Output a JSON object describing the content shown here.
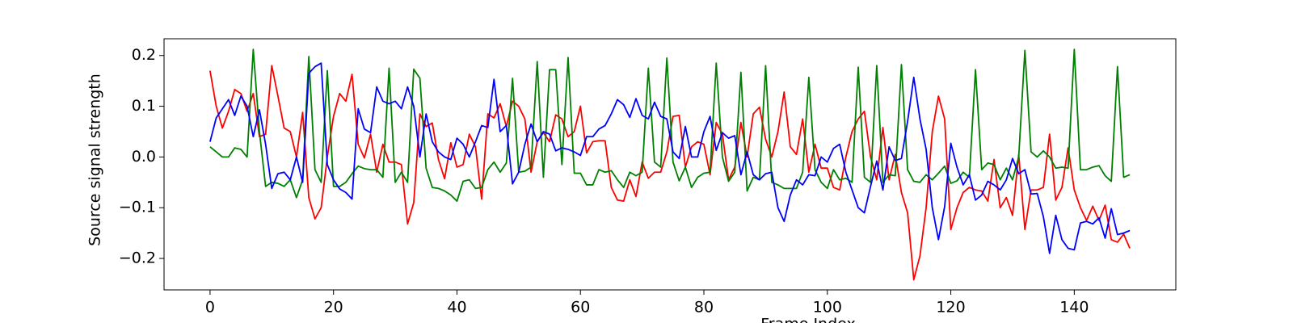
{
  "chart_data": {
    "type": "line",
    "xlabel": "Frame Index",
    "ylabel": "Source signal strength",
    "x": [
      0,
      1,
      2,
      3,
      4,
      5,
      6,
      7,
      8,
      9,
      10,
      11,
      12,
      13,
      14,
      15,
      16,
      17,
      18,
      19,
      20,
      21,
      22,
      23,
      24,
      25,
      26,
      27,
      28,
      29,
      30,
      31,
      32,
      33,
      34,
      35,
      36,
      37,
      38,
      39,
      40,
      41,
      42,
      43,
      44,
      45,
      46,
      47,
      48,
      49,
      50,
      51,
      52,
      53,
      54,
      55,
      56,
      57,
      58,
      59,
      60,
      61,
      62,
      63,
      64,
      65,
      66,
      67,
      68,
      69,
      70,
      71,
      72,
      73,
      74,
      75,
      76,
      77,
      78,
      79,
      80,
      81,
      82,
      83,
      84,
      85,
      86,
      87,
      88,
      89,
      90,
      91,
      92,
      93,
      94,
      95,
      96,
      97,
      98,
      99,
      100,
      101,
      102,
      103,
      104,
      105,
      106,
      107,
      108,
      109,
      110,
      111,
      112,
      113,
      114,
      115,
      116,
      117,
      118,
      119,
      120,
      121,
      122,
      123,
      124,
      125,
      126,
      127,
      128,
      129,
      130,
      131,
      132,
      133,
      134,
      135,
      136,
      137,
      138,
      139,
      140,
      141,
      142,
      143,
      144,
      145,
      146,
      147,
      148,
      149
    ],
    "series": [
      {
        "color": "#ff0000",
        "values": [
          0.17,
          0.1,
          0.057,
          0.09,
          0.133,
          0.125,
          0.09,
          0.125,
          0.04,
          0.045,
          0.18,
          0.12,
          0.057,
          0.05,
          0.0,
          0.088,
          -0.08,
          -0.122,
          -0.1,
          0.0,
          0.08,
          0.125,
          0.11,
          0.163,
          0.025,
          -0.002,
          0.045,
          -0.03,
          0.025,
          -0.01,
          -0.01,
          -0.015,
          -0.132,
          -0.09,
          0.085,
          0.06,
          0.067,
          -0.005,
          -0.043,
          0.028,
          -0.02,
          -0.015,
          0.045,
          0.02,
          -0.083,
          0.085,
          0.077,
          0.105,
          0.06,
          0.11,
          0.1,
          0.075,
          -0.03,
          0.03,
          0.048,
          0.03,
          0.083,
          0.075,
          0.04,
          0.05,
          0.1,
          0.008,
          0.03,
          0.032,
          0.032,
          -0.06,
          -0.085,
          -0.087,
          -0.045,
          -0.078,
          -0.01,
          -0.042,
          -0.03,
          -0.03,
          0.01,
          0.08,
          0.082,
          -0.02,
          0.02,
          0.03,
          0.025,
          -0.035,
          0.068,
          0.045,
          -0.045,
          -0.02,
          0.068,
          0.0,
          0.085,
          0.098,
          0.035,
          0.0,
          0.05,
          0.128,
          0.02,
          0.005,
          0.075,
          -0.03,
          0.025,
          -0.022,
          -0.022,
          -0.06,
          -0.065,
          0.0,
          0.05,
          0.075,
          0.09,
          0.0,
          -0.045,
          0.058,
          -0.045,
          0.005,
          -0.07,
          -0.11,
          -0.242,
          -0.195,
          -0.1,
          0.05,
          0.12,
          0.075,
          -0.143,
          -0.1,
          -0.07,
          -0.06,
          -0.065,
          -0.067,
          -0.087,
          -0.005,
          -0.1,
          -0.08,
          -0.115,
          0.005,
          -0.143,
          -0.065,
          -0.065,
          -0.06,
          0.045,
          -0.085,
          -0.06,
          0.018,
          -0.065,
          -0.1,
          -0.125,
          -0.097,
          -0.125,
          -0.095,
          -0.163,
          -0.168,
          -0.152,
          -0.18
        ]
      },
      {
        "color": "#008000",
        "values": [
          0.02,
          0.01,
          0.0,
          0.0,
          0.018,
          0.015,
          0.0,
          0.212,
          0.05,
          -0.058,
          -0.05,
          -0.052,
          -0.058,
          -0.045,
          -0.08,
          -0.045,
          0.198,
          -0.025,
          -0.05,
          0.17,
          -0.058,
          -0.058,
          -0.05,
          -0.033,
          -0.018,
          -0.023,
          -0.025,
          -0.025,
          -0.04,
          0.175,
          -0.05,
          -0.03,
          -0.05,
          0.173,
          0.155,
          -0.022,
          -0.06,
          -0.062,
          -0.067,
          -0.075,
          -0.087,
          -0.048,
          -0.045,
          -0.062,
          -0.06,
          -0.025,
          -0.01,
          -0.03,
          -0.012,
          0.155,
          -0.03,
          -0.028,
          -0.02,
          0.188,
          -0.04,
          0.172,
          0.172,
          -0.015,
          0.196,
          -0.032,
          -0.032,
          -0.055,
          -0.055,
          -0.025,
          -0.03,
          -0.027,
          -0.045,
          -0.06,
          -0.03,
          -0.037,
          -0.03,
          0.175,
          -0.01,
          -0.02,
          0.195,
          -0.01,
          -0.047,
          -0.02,
          -0.06,
          -0.04,
          -0.032,
          -0.03,
          0.185,
          0.0,
          -0.048,
          -0.03,
          0.167,
          -0.067,
          -0.04,
          -0.045,
          0.18,
          -0.05,
          -0.055,
          -0.062,
          -0.062,
          -0.062,
          -0.03,
          0.157,
          -0.025,
          -0.05,
          -0.062,
          -0.025,
          -0.045,
          -0.042,
          -0.05,
          0.177,
          -0.04,
          -0.05,
          0.18,
          -0.05,
          -0.035,
          -0.037,
          0.182,
          -0.025,
          -0.048,
          -0.05,
          -0.035,
          -0.045,
          -0.032,
          -0.018,
          -0.052,
          -0.047,
          -0.03,
          -0.04,
          0.172,
          -0.025,
          -0.012,
          -0.015,
          -0.045,
          -0.022,
          -0.045,
          0.0,
          0.21,
          0.01,
          0.0,
          0.012,
          0.0,
          -0.022,
          -0.02,
          -0.022,
          0.212,
          -0.025,
          -0.025,
          -0.02,
          -0.017,
          -0.037,
          -0.048,
          0.178,
          -0.04,
          -0.035
        ]
      },
      {
        "color": "#0000ff",
        "values": [
          0.03,
          0.077,
          0.095,
          0.113,
          0.082,
          0.12,
          0.1,
          0.04,
          0.093,
          0.025,
          -0.062,
          -0.033,
          -0.03,
          -0.045,
          0.0,
          -0.05,
          0.165,
          0.178,
          0.185,
          -0.015,
          -0.045,
          -0.063,
          -0.07,
          -0.083,
          0.095,
          0.055,
          0.048,
          0.138,
          0.11,
          0.105,
          0.11,
          0.095,
          0.138,
          0.1,
          0.0,
          0.085,
          0.03,
          0.01,
          0.0,
          -0.005,
          0.037,
          0.025,
          0.0,
          0.03,
          0.062,
          0.058,
          0.153,
          0.05,
          0.062,
          -0.053,
          -0.03,
          0.025,
          0.065,
          0.03,
          0.05,
          0.045,
          0.012,
          0.018,
          0.015,
          0.01,
          0.003,
          0.04,
          0.04,
          0.055,
          0.062,
          0.085,
          0.113,
          0.103,
          0.078,
          0.115,
          0.082,
          0.075,
          0.108,
          0.08,
          0.075,
          0.01,
          -0.003,
          0.06,
          0.0,
          0.0,
          0.05,
          0.08,
          0.013,
          0.048,
          0.037,
          0.042,
          -0.035,
          0.01,
          -0.035,
          -0.045,
          -0.033,
          -0.03,
          -0.1,
          -0.127,
          -0.075,
          -0.045,
          -0.055,
          -0.035,
          -0.037,
          0.0,
          -0.01,
          0.017,
          0.025,
          -0.03,
          -0.065,
          -0.1,
          -0.11,
          -0.058,
          -0.008,
          -0.065,
          0.02,
          -0.007,
          -0.003,
          0.07,
          0.157,
          0.075,
          0.015,
          -0.1,
          -0.163,
          -0.098,
          0.027,
          -0.02,
          -0.055,
          -0.035,
          -0.085,
          -0.075,
          -0.048,
          -0.055,
          -0.065,
          -0.045,
          -0.003,
          -0.033,
          -0.025,
          -0.073,
          -0.072,
          -0.118,
          -0.19,
          -0.115,
          -0.163,
          -0.18,
          -0.183,
          -0.13,
          -0.127,
          -0.132,
          -0.12,
          -0.16,
          -0.102,
          -0.153,
          -0.15,
          -0.145
        ]
      }
    ],
    "xlim": [
      -7.45,
      156.45
    ],
    "ylim": [
      -0.262,
      0.233
    ],
    "xticks": [
      0,
      20,
      40,
      60,
      80,
      100,
      120,
      140
    ],
    "yticks": [
      {
        "value": -0.2,
        "label": "−0.2"
      },
      {
        "value": -0.1,
        "label": "−0.1"
      },
      {
        "value": 0,
        "label": "0.0"
      },
      0.1,
      0.2
    ]
  }
}
